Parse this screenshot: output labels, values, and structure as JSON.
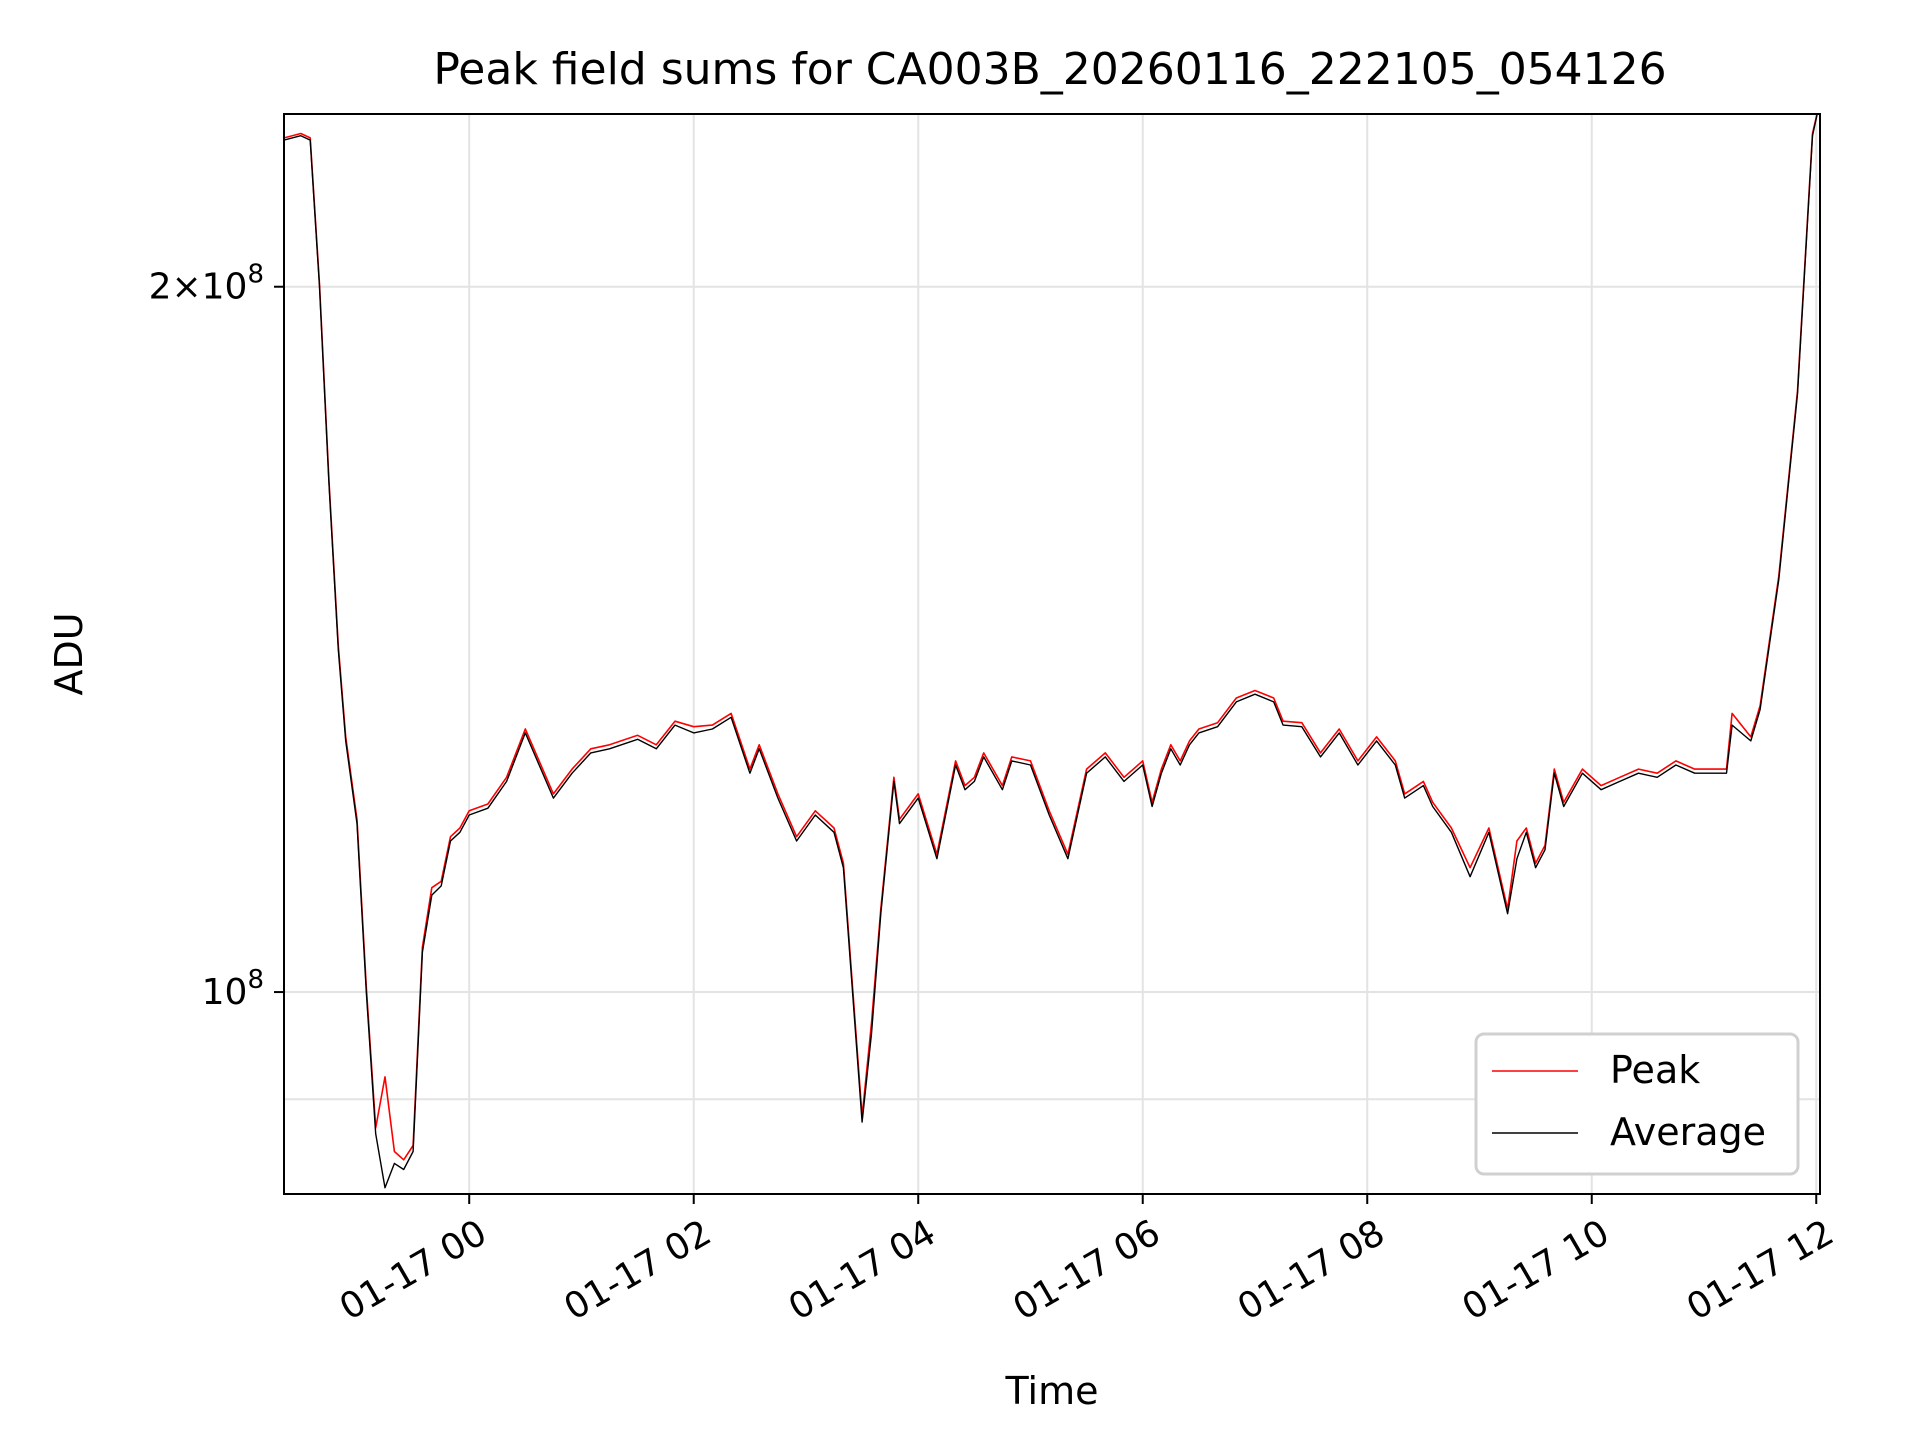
{
  "chart_data": {
    "type": "line",
    "title": "Peak field sums for CA003B_20260116_222105_054126",
    "xlabel": "Time",
    "ylabel": "ADU",
    "y_scale": "log",
    "ylim": [
      82000000,
      237000000
    ],
    "xlim": [
      "2026-01-16 22:21",
      "2026-01-17 12:02"
    ],
    "grid": true,
    "legend_position": "lower right",
    "x_ticks": [
      {
        "t": "2026-01-17 00:00",
        "label": "01-17 00"
      },
      {
        "t": "2026-01-17 02:00",
        "label": "01-17 02"
      },
      {
        "t": "2026-01-17 04:00",
        "label": "01-17 04"
      },
      {
        "t": "2026-01-17 06:00",
        "label": "01-17 06"
      },
      {
        "t": "2026-01-17 08:00",
        "label": "01-17 08"
      },
      {
        "t": "2026-01-17 10:00",
        "label": "01-17 10"
      },
      {
        "t": "2026-01-17 12:00",
        "label": "01-17 12"
      }
    ],
    "y_ticks": [
      {
        "value": 200000000,
        "mantissa": "2",
        "times": "×",
        "base": "10",
        "exp": "8"
      },
      {
        "value": 100000000,
        "mantissa": "",
        "times": "",
        "base": "10",
        "exp": "8"
      }
    ],
    "y_minor_gridlines": [
      90000000
    ],
    "series": [
      {
        "name": "Average",
        "color": "#000000",
        "x": [
          "2026-01-16 22:21",
          "2026-01-16 22:30",
          "2026-01-16 22:35",
          "2026-01-16 22:40",
          "2026-01-16 22:45",
          "2026-01-16 22:50",
          "2026-01-16 22:54",
          "2026-01-16 23:00",
          "2026-01-16 23:05",
          "2026-01-16 23:10",
          "2026-01-16 23:15",
          "2026-01-16 23:20",
          "2026-01-16 23:25",
          "2026-01-16 23:30",
          "2026-01-16 23:35",
          "2026-01-16 23:40",
          "2026-01-16 23:45",
          "2026-01-16 23:50",
          "2026-01-16 23:55",
          "2026-01-17 00:00",
          "2026-01-17 00:10",
          "2026-01-17 00:20",
          "2026-01-17 00:30",
          "2026-01-17 00:45",
          "2026-01-17 00:55",
          "2026-01-17 01:05",
          "2026-01-17 01:15",
          "2026-01-17 01:30",
          "2026-01-17 01:40",
          "2026-01-17 01:50",
          "2026-01-17 02:00",
          "2026-01-17 02:10",
          "2026-01-17 02:20",
          "2026-01-17 02:30",
          "2026-01-17 02:35",
          "2026-01-17 02:45",
          "2026-01-17 02:55",
          "2026-01-17 03:05",
          "2026-01-17 03:15",
          "2026-01-17 03:20",
          "2026-01-17 03:30",
          "2026-01-17 03:35",
          "2026-01-17 03:40",
          "2026-01-17 03:47",
          "2026-01-17 03:50",
          "2026-01-17 04:00",
          "2026-01-17 04:10",
          "2026-01-17 04:20",
          "2026-01-17 04:25",
          "2026-01-17 04:30",
          "2026-01-17 04:35",
          "2026-01-17 04:45",
          "2026-01-17 04:50",
          "2026-01-17 05:00",
          "2026-01-17 05:10",
          "2026-01-17 05:20",
          "2026-01-17 05:30",
          "2026-01-17 05:40",
          "2026-01-17 05:50",
          "2026-01-17 06:00",
          "2026-01-17 06:05",
          "2026-01-17 06:10",
          "2026-01-17 06:15",
          "2026-01-17 06:20",
          "2026-01-17 06:25",
          "2026-01-17 06:30",
          "2026-01-17 06:40",
          "2026-01-17 06:50",
          "2026-01-17 07:00",
          "2026-01-17 07:10",
          "2026-01-17 07:15",
          "2026-01-17 07:25",
          "2026-01-17 07:35",
          "2026-01-17 07:45",
          "2026-01-17 07:55",
          "2026-01-17 08:05",
          "2026-01-17 08:15",
          "2026-01-17 08:20",
          "2026-01-17 08:30",
          "2026-01-17 08:35",
          "2026-01-17 08:45",
          "2026-01-17 08:55",
          "2026-01-17 09:05",
          "2026-01-17 09:15",
          "2026-01-17 09:20",
          "2026-01-17 09:25",
          "2026-01-17 09:30",
          "2026-01-17 09:35",
          "2026-01-17 09:40",
          "2026-01-17 09:45",
          "2026-01-17 09:55",
          "2026-01-17 10:05",
          "2026-01-17 10:15",
          "2026-01-17 10:25",
          "2026-01-17 10:35",
          "2026-01-17 10:45",
          "2026-01-17 10:55",
          "2026-01-17 11:05",
          "2026-01-17 11:12",
          "2026-01-17 11:15",
          "2026-01-17 11:25",
          "2026-01-17 11:30",
          "2026-01-17 11:40",
          "2026-01-17 11:50",
          "2026-01-17 11:58",
          "2026-01-17 12:02"
        ],
        "y": [
          231000000,
          232000000,
          231000000,
          200000000,
          165000000,
          140000000,
          128000000,
          118000000,
          100000000,
          87000000,
          82500000,
          84500000,
          84000000,
          85500000,
          104000000,
          110000000,
          111000000,
          116000000,
          117000000,
          119000000,
          119800000,
          123000000,
          129000000,
          121000000,
          124000000,
          126500000,
          127000000,
          128200000,
          127000000,
          130000000,
          129000000,
          129500000,
          131000000,
          124000000,
          127000000,
          121000000,
          116000000,
          119000000,
          117000000,
          113000000,
          88000000,
          96000000,
          108000000,
          123000000,
          118000000,
          121000000,
          114000000,
          125000000,
          122000000,
          123000000,
          126000000,
          122000000,
          125500000,
          125000000,
          119000000,
          114000000,
          124000000,
          126000000,
          123000000,
          125000000,
          120000000,
          124000000,
          127000000,
          125000000,
          127500000,
          129000000,
          129800000,
          133000000,
          134000000,
          133000000,
          130000000,
          129800000,
          126000000,
          129000000,
          125000000,
          128000000,
          125000000,
          121000000,
          122500000,
          120000000,
          117000000,
          112000000,
          117000000,
          108000000,
          114000000,
          117000000,
          113000000,
          115000000,
          124000000,
          120000000,
          124000000,
          122000000,
          123000000,
          124000000,
          123500000,
          125000000,
          124000000,
          124000000,
          124000000,
          130000000,
          128000000,
          132000000,
          150000000,
          180000000,
          232000000,
          240000000
        ]
      },
      {
        "name": "Peak",
        "color": "#ff0000",
        "x": [
          "2026-01-16 22:21",
          "2026-01-16 22:30",
          "2026-01-16 22:35",
          "2026-01-16 22:40",
          "2026-01-16 22:45",
          "2026-01-16 22:50",
          "2026-01-16 22:54",
          "2026-01-16 23:00",
          "2026-01-16 23:05",
          "2026-01-16 23:10",
          "2026-01-16 23:15",
          "2026-01-16 23:20",
          "2026-01-16 23:25",
          "2026-01-16 23:30",
          "2026-01-16 23:35",
          "2026-01-16 23:40",
          "2026-01-16 23:45",
          "2026-01-16 23:50",
          "2026-01-16 23:55",
          "2026-01-17 00:00",
          "2026-01-17 00:10",
          "2026-01-17 00:20",
          "2026-01-17 00:30",
          "2026-01-17 00:45",
          "2026-01-17 00:55",
          "2026-01-17 01:05",
          "2026-01-17 01:15",
          "2026-01-17 01:30",
          "2026-01-17 01:40",
          "2026-01-17 01:50",
          "2026-01-17 02:00",
          "2026-01-17 02:10",
          "2026-01-17 02:20",
          "2026-01-17 02:30",
          "2026-01-17 02:35",
          "2026-01-17 02:45",
          "2026-01-17 02:55",
          "2026-01-17 03:05",
          "2026-01-17 03:15",
          "2026-01-17 03:20",
          "2026-01-17 03:30",
          "2026-01-17 03:35",
          "2026-01-17 03:40",
          "2026-01-17 03:47",
          "2026-01-17 03:50",
          "2026-01-17 04:00",
          "2026-01-17 04:10",
          "2026-01-17 04:20",
          "2026-01-17 04:25",
          "2026-01-17 04:30",
          "2026-01-17 04:35",
          "2026-01-17 04:45",
          "2026-01-17 04:50",
          "2026-01-17 05:00",
          "2026-01-17 05:10",
          "2026-01-17 05:20",
          "2026-01-17 05:30",
          "2026-01-17 05:40",
          "2026-01-17 05:50",
          "2026-01-17 06:00",
          "2026-01-17 06:05",
          "2026-01-17 06:10",
          "2026-01-17 06:15",
          "2026-01-17 06:20",
          "2026-01-17 06:25",
          "2026-01-17 06:30",
          "2026-01-17 06:40",
          "2026-01-17 06:50",
          "2026-01-17 07:00",
          "2026-01-17 07:10",
          "2026-01-17 07:15",
          "2026-01-17 07:25",
          "2026-01-17 07:35",
          "2026-01-17 07:45",
          "2026-01-17 07:55",
          "2026-01-17 08:05",
          "2026-01-17 08:15",
          "2026-01-17 08:20",
          "2026-01-17 08:30",
          "2026-01-17 08:35",
          "2026-01-17 08:45",
          "2026-01-17 08:55",
          "2026-01-17 09:05",
          "2026-01-17 09:15",
          "2026-01-17 09:20",
          "2026-01-17 09:25",
          "2026-01-17 09:30",
          "2026-01-17 09:35",
          "2026-01-17 09:40",
          "2026-01-17 09:45",
          "2026-01-17 09:55",
          "2026-01-17 10:05",
          "2026-01-17 10:15",
          "2026-01-17 10:25",
          "2026-01-17 10:35",
          "2026-01-17 10:45",
          "2026-01-17 10:55",
          "2026-01-17 11:05",
          "2026-01-17 11:12",
          "2026-01-17 11:15",
          "2026-01-17 11:25",
          "2026-01-17 11:30",
          "2026-01-17 11:40",
          "2026-01-17 11:50",
          "2026-01-17 11:58",
          "2026-01-17 12:02"
        ],
        "y": [
          231500000,
          232500000,
          231500000,
          200500000,
          165500000,
          140500000,
          128500000,
          118500000,
          100500000,
          87500000,
          92000000,
          85500000,
          84800000,
          86000000,
          104500000,
          110800000,
          111500000,
          116500000,
          117500000,
          119500000,
          120300000,
          123500000,
          129500000,
          121500000,
          124500000,
          127000000,
          127500000,
          128700000,
          127500000,
          130500000,
          129800000,
          130000000,
          131500000,
          124500000,
          127500000,
          121500000,
          116500000,
          119500000,
          117500000,
          113500000,
          88500000,
          97000000,
          108500000,
          123500000,
          118500000,
          121500000,
          114500000,
          125500000,
          122500000,
          123500000,
          126500000,
          122500000,
          126000000,
          125500000,
          119500000,
          114500000,
          124500000,
          126500000,
          123500000,
          125500000,
          120500000,
          124500000,
          127500000,
          125500000,
          128000000,
          129500000,
          130300000,
          133500000,
          134500000,
          133500000,
          130500000,
          130300000,
          126500000,
          129500000,
          125500000,
          128500000,
          125500000,
          121500000,
          123000000,
          120500000,
          117500000,
          113000000,
          117500000,
          108500000,
          116000000,
          117500000,
          113500000,
          115500000,
          124500000,
          120500000,
          124500000,
          122500000,
          123500000,
          124500000,
          124000000,
          125500000,
          124500000,
          124500000,
          124500000,
          131500000,
          128500000,
          132500000,
          150500000,
          180500000,
          232500000,
          240000000
        ]
      }
    ]
  }
}
